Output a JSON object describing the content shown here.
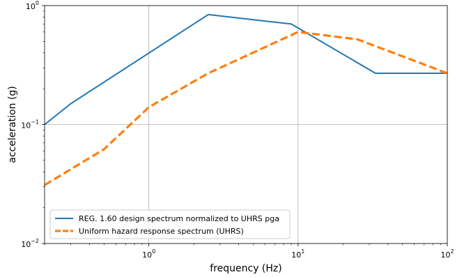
{
  "chart_data": {
    "type": "line",
    "xscale": "log",
    "yscale": "log",
    "xlim": [
      0.2,
      100
    ],
    "ylim": [
      0.01,
      1
    ],
    "xlabel": "frequency (Hz)",
    "ylabel": "acceleration (g)",
    "grid": "major",
    "legend_position": "lower-left",
    "x_ticks": [
      {
        "value": 1,
        "base": "10",
        "exp": "0"
      },
      {
        "value": 10,
        "base": "10",
        "exp": "1"
      },
      {
        "value": 100,
        "base": "10",
        "exp": "2"
      }
    ],
    "y_ticks": [
      {
        "value": 0.01,
        "base": "10",
        "exp": "−2"
      },
      {
        "value": 0.1,
        "base": "10",
        "exp": "−1"
      },
      {
        "value": 1,
        "base": "10",
        "exp": "0"
      }
    ],
    "series": [
      {
        "name": "REG. 1.60 design spectrum normalized to UHRS pga",
        "color": "#1f77b4",
        "style": "solid",
        "x": [
          0.2,
          0.3,
          2.5,
          9.0,
          33.0,
          100.0
        ],
        "y": [
          0.1,
          0.15,
          0.84,
          0.7,
          0.27,
          0.27
        ]
      },
      {
        "name": "Uniform hazard response spectrum (UHRS)",
        "color": "#ff7f0e",
        "style": "dashed",
        "x": [
          0.2,
          0.5,
          1.0,
          2.5,
          10.0,
          25.0,
          100.0
        ],
        "y": [
          0.031,
          0.062,
          0.14,
          0.27,
          0.6,
          0.52,
          0.27
        ]
      }
    ]
  }
}
